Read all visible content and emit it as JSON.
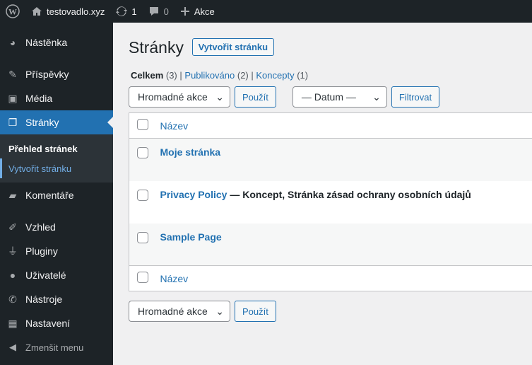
{
  "adminbar": {
    "site": "testovadlo.xyz",
    "updates": "1",
    "comments": "0",
    "new": "Akce",
    "icons": [
      "wordpress-logo-icon",
      "home-icon",
      "updates-icon",
      "comment-icon",
      "plus-icon"
    ]
  },
  "sidebar": {
    "items": [
      {
        "label": "Nástěnka",
        "icon": "dashboard-icon"
      },
      {
        "label": "Příspěvky",
        "icon": "pin-icon"
      },
      {
        "label": "Média",
        "icon": "media-icon"
      },
      {
        "label": "Stránky",
        "icon": "pages-icon"
      },
      {
        "label": "Komentáře",
        "icon": "comment-icon"
      },
      {
        "label": "Vzhled",
        "icon": "brush-icon"
      },
      {
        "label": "Pluginy",
        "icon": "plugin-icon"
      },
      {
        "label": "Uživatelé",
        "icon": "user-icon"
      },
      {
        "label": "Nástroje",
        "icon": "wrench-icon"
      },
      {
        "label": "Nastavení",
        "icon": "settings-icon"
      }
    ],
    "submenu": [
      "Přehled stránek",
      "Vytvořit stránku"
    ],
    "collapse": "Zmenšit menu"
  },
  "colors": {
    "accent": "#2271b1",
    "adminbar": "#1d2327"
  },
  "main": {
    "title": "Stránky",
    "add_new": "Vytvořit stránku",
    "views": [
      {
        "label": "Celkem",
        "count": "(3)"
      },
      {
        "label": "Publikováno",
        "count": "(2)"
      },
      {
        "label": "Koncepty",
        "count": "(1)"
      }
    ],
    "bulk": "Hromadné akce",
    "apply": "Použít",
    "date": "— Datum —",
    "filter": "Filtrovat",
    "column": "Název",
    "rows": [
      {
        "title": "Moje stránka",
        "state": ""
      },
      {
        "title": "Privacy Policy",
        "state": " — Koncept, Stránka zásad ochrany osobních údajů"
      },
      {
        "title": "Sample Page",
        "state": ""
      }
    ]
  }
}
